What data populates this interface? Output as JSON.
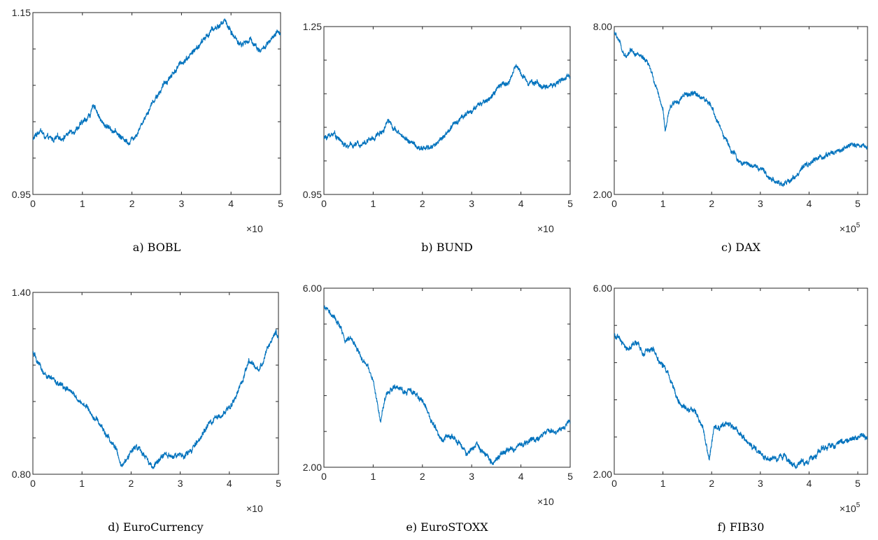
{
  "chart_data": [
    {
      "type": "line",
      "caption": "a) BOBL",
      "color": "#0072bd",
      "ylim": [
        0.95,
        1.15
      ],
      "ytick_labels": [
        "0.95",
        "1.15"
      ],
      "xlim": [
        0,
        500000
      ],
      "xtick_labels": [
        "0",
        "1",
        "2",
        "3",
        "4",
        "5"
      ],
      "x_multiplier_label": "×10",
      "x_multiplier_exp": "",
      "series": [
        {
          "x": [
            0,
            15000,
            25000,
            40000,
            60000,
            80000,
            100000,
            115000,
            125000,
            140000,
            160000,
            180000,
            195000,
            210000,
            240000,
            270000,
            300000,
            330000,
            360000,
            375000,
            388000,
            400000,
            420000,
            440000,
            460000,
            480000,
            495000,
            500000
          ],
          "y": [
            1.01,
            1.022,
            1.012,
            1.01,
            1.013,
            1.02,
            1.028,
            1.038,
            1.048,
            1.028,
            1.022,
            1.012,
            1.008,
            1.018,
            1.05,
            1.075,
            1.095,
            1.11,
            1.13,
            1.135,
            1.142,
            1.128,
            1.115,
            1.12,
            1.108,
            1.118,
            1.128,
            1.128
          ]
        }
      ]
    },
    {
      "type": "line",
      "caption": "b) BUND",
      "color": "#0072bd",
      "ylim": [
        0.95,
        1.25
      ],
      "ytick_labels": [
        "0.95",
        "1.25"
      ],
      "xlim": [
        0,
        500000
      ],
      "xtick_labels": [
        "0",
        "1",
        "2",
        "3",
        "4",
        "5"
      ],
      "x_multiplier_label": "×10",
      "x_multiplier_exp": "",
      "series": [
        {
          "x": [
            0,
            20000,
            45000,
            70000,
            100000,
            120000,
            130000,
            150000,
            175000,
            195000,
            220000,
            250000,
            280000,
            310000,
            340000,
            360000,
            375000,
            390000,
            410000,
            430000,
            450000,
            470000,
            490000,
            500000
          ],
          "y": [
            1.05,
            1.06,
            1.035,
            1.04,
            1.05,
            1.065,
            1.085,
            1.06,
            1.045,
            1.03,
            1.035,
            1.06,
            1.09,
            1.105,
            1.125,
            1.145,
            1.15,
            1.18,
            1.155,
            1.15,
            1.14,
            1.15,
            1.155,
            1.165
          ]
        }
      ]
    },
    {
      "type": "line",
      "caption": "c) DAX",
      "color": "#0072bd",
      "ylim": [
        2.0,
        8.0
      ],
      "ytick_labels": [
        "2.00",
        "8.00"
      ],
      "xlim": [
        0,
        520000
      ],
      "xtick_labels": [
        "0",
        "1",
        "2",
        "3",
        "4",
        "5"
      ],
      "x_multiplier_label": "×10",
      "x_multiplier_exp": "5",
      "series": [
        {
          "x": [
            0,
            10000,
            20000,
            35000,
            50000,
            70000,
            90000,
            100000,
            105000,
            115000,
            140000,
            160000,
            180000,
            200000,
            220000,
            240000,
            260000,
            280000,
            300000,
            320000,
            340000,
            345000,
            360000,
            380000,
            400000,
            420000,
            450000,
            480000,
            500000,
            520000
          ],
          "y": [
            7.8,
            7.5,
            6.9,
            7.2,
            7.0,
            6.6,
            5.7,
            5.0,
            4.3,
            5.1,
            5.5,
            5.6,
            5.5,
            5.1,
            4.3,
            3.6,
            3.1,
            3.1,
            2.9,
            2.6,
            2.4,
            2.3,
            2.5,
            2.8,
            3.1,
            3.3,
            3.5,
            3.7,
            3.8,
            3.7
          ]
        }
      ]
    },
    {
      "type": "line",
      "caption": "d) EuroCurrency",
      "color": "#0072bd",
      "ylim": [
        0.8,
        1.4
      ],
      "ytick_labels": [
        "0.80",
        "1.40"
      ],
      "xlim": [
        0,
        500000
      ],
      "xtick_labels": [
        "0",
        "1",
        "2",
        "3",
        "4",
        "5"
      ],
      "x_multiplier_label": "×10",
      "x_multiplier_exp": "",
      "series": [
        {
          "x": [
            0,
            15000,
            30000,
            50000,
            70000,
            90000,
            110000,
            130000,
            150000,
            170000,
            180000,
            195000,
            210000,
            230000,
            245000,
            270000,
            290000,
            310000,
            330000,
            350000,
            370000,
            390000,
            410000,
            430000,
            440000,
            460000,
            480000,
            495000,
            500000
          ],
          "y": [
            1.2,
            1.15,
            1.12,
            1.1,
            1.08,
            1.05,
            1.02,
            0.98,
            0.93,
            0.88,
            0.82,
            0.86,
            0.9,
            0.85,
            0.82,
            0.87,
            0.86,
            0.86,
            0.89,
            0.95,
            0.98,
            1.0,
            1.05,
            1.12,
            1.17,
            1.14,
            1.22,
            1.27,
            1.25
          ]
        }
      ]
    },
    {
      "type": "line",
      "caption": "e) EuroSTOXX",
      "color": "#0072bd",
      "ylim": [
        2.0,
        6.0
      ],
      "ytick_labels": [
        "2.00",
        "6.00"
      ],
      "xlim": [
        0,
        500000
      ],
      "xtick_labels": [
        "0",
        "1",
        "2",
        "3",
        "4",
        "5"
      ],
      "x_multiplier_label": "×10",
      "x_multiplier_exp": "",
      "series": [
        {
          "x": [
            0,
            15000,
            30000,
            45000,
            55000,
            70000,
            90000,
            100000,
            110000,
            115000,
            125000,
            140000,
            160000,
            180000,
            200000,
            220000,
            240000,
            250000,
            270000,
            290000,
            310000,
            330000,
            345000,
            360000,
            380000,
            400000,
            420000,
            440000,
            460000,
            480000,
            500000
          ],
          "y": [
            5.6,
            5.4,
            5.2,
            4.8,
            4.9,
            4.6,
            4.2,
            3.9,
            3.3,
            3.0,
            3.6,
            3.8,
            3.7,
            3.7,
            3.5,
            3.0,
            2.6,
            2.7,
            2.6,
            2.3,
            2.5,
            2.3,
            2.1,
            2.3,
            2.4,
            2.5,
            2.6,
            2.7,
            2.8,
            2.9,
            3.0
          ]
        }
      ]
    },
    {
      "type": "line",
      "caption": "f) FIB30",
      "color": "#0072bd",
      "ylim": [
        2.0,
        6.0
      ],
      "ytick_labels": [
        "6.00",
        "2.00"
      ],
      "ytick_values": [
        6.0,
        2.0
      ],
      "xlim": [
        0,
        520000
      ],
      "xtick_labels": [
        "0",
        "1",
        "2",
        "3",
        "4",
        "5"
      ],
      "x_multiplier_label": "×10",
      "x_multiplier_exp": "5",
      "series": [
        {
          "x": [
            0,
            10000,
            25000,
            45000,
            60000,
            80000,
            95000,
            110000,
            125000,
            140000,
            160000,
            180000,
            190000,
            195000,
            205000,
            230000,
            260000,
            290000,
            310000,
            330000,
            350000,
            370000,
            390000,
            410000,
            440000,
            470000,
            500000,
            520000
          ],
          "y": [
            5.0,
            4.9,
            4.7,
            4.8,
            4.6,
            4.7,
            4.4,
            4.2,
            3.8,
            3.4,
            3.4,
            3.1,
            2.6,
            2.3,
            3.0,
            3.1,
            2.9,
            2.5,
            2.3,
            2.3,
            2.4,
            2.2,
            2.2,
            2.4,
            2.6,
            2.7,
            2.8,
            2.8
          ]
        }
      ]
    }
  ]
}
